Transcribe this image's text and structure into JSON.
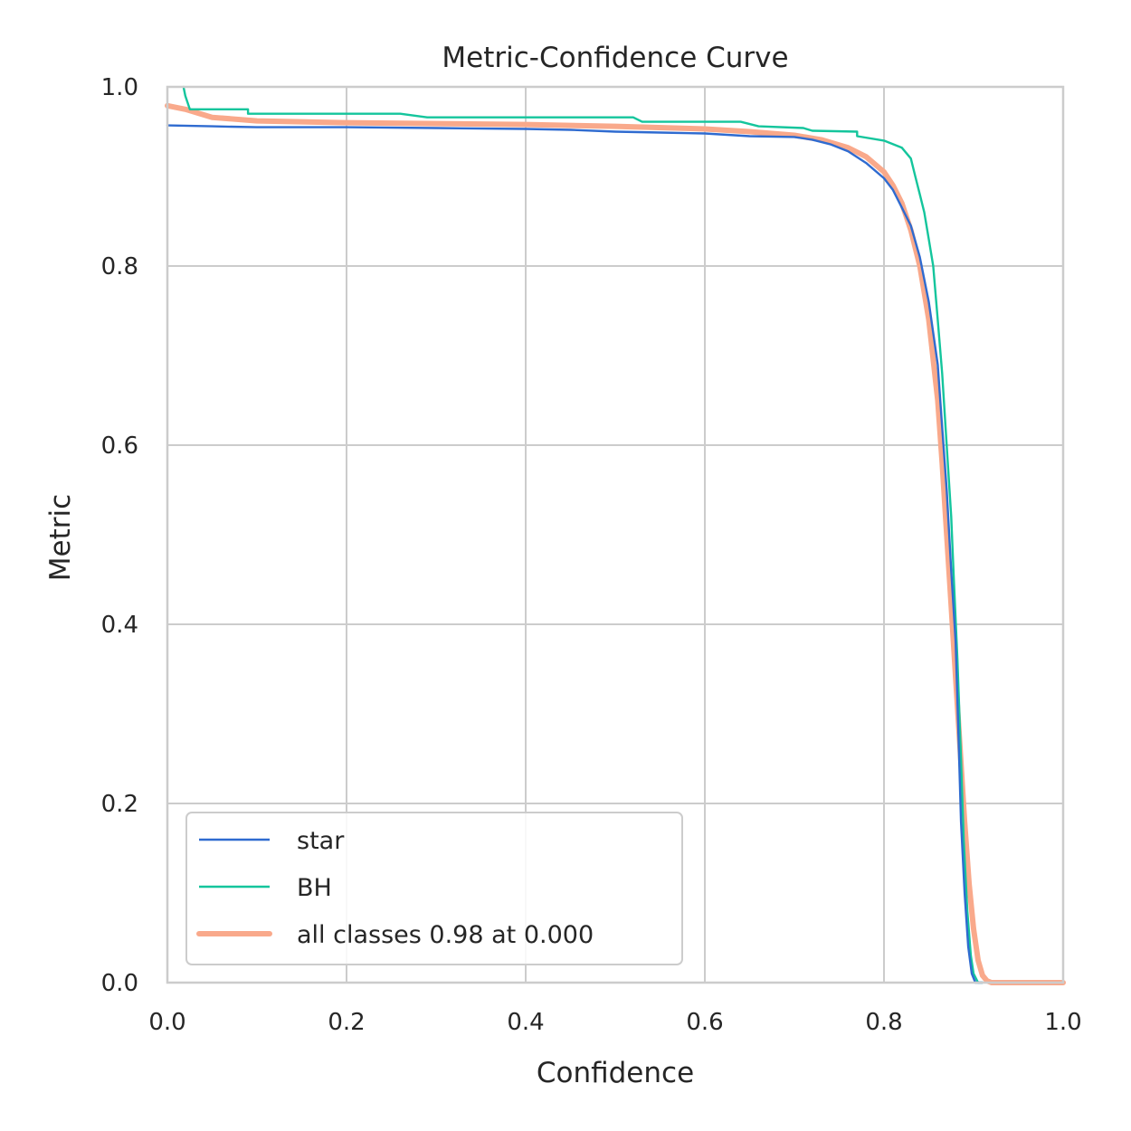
{
  "chart_data": {
    "type": "line",
    "title": "Metric-Confidence Curve",
    "xlabel": "Confidence",
    "ylabel": "Metric",
    "xlim": [
      0,
      1
    ],
    "ylim": [
      0,
      1
    ],
    "xticks": [
      "0.0",
      "0.2",
      "0.4",
      "0.6",
      "0.8",
      "1.0"
    ],
    "yticks": [
      "0.0",
      "0.2",
      "0.4",
      "0.6",
      "0.8",
      "1.0"
    ],
    "grid": true,
    "legend_position": "lower-left",
    "series": [
      {
        "name": "star",
        "color": "#2f6bd0",
        "width": "thin",
        "points": [
          [
            0.0,
            0.957
          ],
          [
            0.05,
            0.956
          ],
          [
            0.1,
            0.955
          ],
          [
            0.2,
            0.955
          ],
          [
            0.3,
            0.954
          ],
          [
            0.4,
            0.953
          ],
          [
            0.45,
            0.952
          ],
          [
            0.5,
            0.95
          ],
          [
            0.55,
            0.949
          ],
          [
            0.6,
            0.948
          ],
          [
            0.65,
            0.945
          ],
          [
            0.7,
            0.944
          ],
          [
            0.72,
            0.941
          ],
          [
            0.74,
            0.936
          ],
          [
            0.76,
            0.928
          ],
          [
            0.78,
            0.915
          ],
          [
            0.8,
            0.898
          ],
          [
            0.81,
            0.885
          ],
          [
            0.82,
            0.865
          ],
          [
            0.83,
            0.845
          ],
          [
            0.84,
            0.81
          ],
          [
            0.85,
            0.76
          ],
          [
            0.86,
            0.69
          ],
          [
            0.865,
            0.62
          ],
          [
            0.87,
            0.55
          ],
          [
            0.875,
            0.46
          ],
          [
            0.88,
            0.38
          ],
          [
            0.883,
            0.28
          ],
          [
            0.886,
            0.18
          ],
          [
            0.89,
            0.1
          ],
          [
            0.894,
            0.04
          ],
          [
            0.898,
            0.01
          ],
          [
            0.902,
            0.0
          ],
          [
            0.91,
            0.0
          ]
        ]
      },
      {
        "name": "BH",
        "color": "#14c59c",
        "width": "thin",
        "points": [
          [
            0.018,
            1.0
          ],
          [
            0.02,
            0.99
          ],
          [
            0.025,
            0.975
          ],
          [
            0.05,
            0.975
          ],
          [
            0.09,
            0.975
          ],
          [
            0.09,
            0.97
          ],
          [
            0.26,
            0.97
          ],
          [
            0.29,
            0.966
          ],
          [
            0.52,
            0.966
          ],
          [
            0.53,
            0.961
          ],
          [
            0.64,
            0.961
          ],
          [
            0.66,
            0.956
          ],
          [
            0.71,
            0.954
          ],
          [
            0.72,
            0.951
          ],
          [
            0.77,
            0.95
          ],
          [
            0.77,
            0.945
          ],
          [
            0.8,
            0.94
          ],
          [
            0.82,
            0.932
          ],
          [
            0.83,
            0.92
          ],
          [
            0.835,
            0.9
          ],
          [
            0.84,
            0.88
          ],
          [
            0.845,
            0.86
          ],
          [
            0.85,
            0.83
          ],
          [
            0.855,
            0.8
          ],
          [
            0.86,
            0.74
          ],
          [
            0.865,
            0.68
          ],
          [
            0.87,
            0.6
          ],
          [
            0.875,
            0.52
          ],
          [
            0.878,
            0.45
          ],
          [
            0.882,
            0.36
          ],
          [
            0.886,
            0.25
          ],
          [
            0.889,
            0.16
          ],
          [
            0.893,
            0.08
          ],
          [
            0.897,
            0.03
          ],
          [
            0.9,
            0.01
          ],
          [
            0.905,
            0.0
          ],
          [
            0.91,
            0.0
          ]
        ]
      },
      {
        "name": "all classes 0.98 at 0.000",
        "color": "#f9a98b",
        "width": "thick",
        "points": [
          [
            0.0,
            0.979
          ],
          [
            0.02,
            0.975
          ],
          [
            0.05,
            0.966
          ],
          [
            0.1,
            0.962
          ],
          [
            0.2,
            0.96
          ],
          [
            0.3,
            0.959
          ],
          [
            0.4,
            0.958
          ],
          [
            0.5,
            0.956
          ],
          [
            0.6,
            0.953
          ],
          [
            0.65,
            0.95
          ],
          [
            0.7,
            0.946
          ],
          [
            0.73,
            0.941
          ],
          [
            0.76,
            0.932
          ],
          [
            0.78,
            0.922
          ],
          [
            0.8,
            0.905
          ],
          [
            0.81,
            0.89
          ],
          [
            0.82,
            0.87
          ],
          [
            0.83,
            0.84
          ],
          [
            0.84,
            0.8
          ],
          [
            0.85,
            0.74
          ],
          [
            0.86,
            0.65
          ],
          [
            0.865,
            0.58
          ],
          [
            0.87,
            0.5
          ],
          [
            0.875,
            0.42
          ],
          [
            0.88,
            0.34
          ],
          [
            0.885,
            0.26
          ],
          [
            0.89,
            0.18
          ],
          [
            0.895,
            0.11
          ],
          [
            0.9,
            0.06
          ],
          [
            0.905,
            0.025
          ],
          [
            0.91,
            0.008
          ],
          [
            0.915,
            0.002
          ],
          [
            0.92,
            0.0
          ],
          [
            1.0,
            0.0
          ]
        ]
      }
    ]
  }
}
